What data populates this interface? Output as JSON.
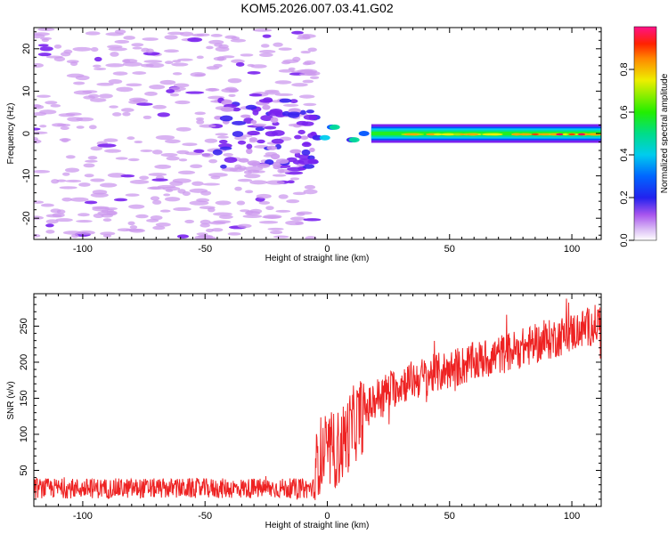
{
  "title": "KOM5.2026.007.03.41.G02",
  "chart_data": [
    {
      "type": "heatmap",
      "xlabel": "Height of straight line (km)",
      "ylabel": "Frequency (Hz)",
      "xlim": [
        -120,
        112
      ],
      "ylim": [
        -25,
        25
      ],
      "xticks": [
        -100,
        -50,
        0,
        50,
        100
      ],
      "yticks": [
        -20,
        -10,
        0,
        10,
        20
      ],
      "colorbar": {
        "label": "Normalized spectral amplitude",
        "range": [
          0,
          1
        ],
        "ticks": [
          "0.0",
          "0.2",
          "0.4",
          "0.6",
          "0.8"
        ],
        "colors": [
          "#ffffff",
          "#cc99ee",
          "#7a22ee",
          "#3a22ee",
          "#0055ff",
          "#00ccee",
          "#00dd99",
          "#22ee22",
          "#99ee00",
          "#eeee00",
          "#ffaa00",
          "#ff4400",
          "#ee0055",
          "#ff1199"
        ]
      },
      "description_bands": [
        {
          "x": [
            -120,
            -5
          ],
          "freq_spread": [
            -25,
            25
          ],
          "amplitude": "low (0.05-0.3)"
        },
        {
          "x": [
            -5,
            20
          ],
          "freq_center": 0,
          "amplitude": "mixed (0.2-0.6)"
        },
        {
          "x": [
            20,
            112
          ],
          "freq_center": 0,
          "amplitude": "high (0.6-1.0)"
        }
      ]
    },
    {
      "type": "line",
      "xlabel": "Height of straight line (km)",
      "ylabel": "SNR (v/v)",
      "xlim": [
        -120,
        112
      ],
      "ylim": [
        0,
        295
      ],
      "xticks": [
        -100,
        -50,
        0,
        50,
        100
      ],
      "yticks": [
        50,
        100,
        150,
        200,
        250
      ],
      "color": "#ee2222",
      "series_trend": [
        {
          "x": -120,
          "y": 25
        },
        {
          "x": -60,
          "y": 25
        },
        {
          "x": -5,
          "y": 25
        },
        {
          "x": -4,
          "y": 70
        },
        {
          "x": 5,
          "y": 80
        },
        {
          "x": 10,
          "y": 110
        },
        {
          "x": 20,
          "y": 150
        },
        {
          "x": 30,
          "y": 170
        },
        {
          "x": 50,
          "y": 190
        },
        {
          "x": 70,
          "y": 210
        },
        {
          "x": 90,
          "y": 230
        },
        {
          "x": 112,
          "y": 255
        }
      ]
    }
  ]
}
